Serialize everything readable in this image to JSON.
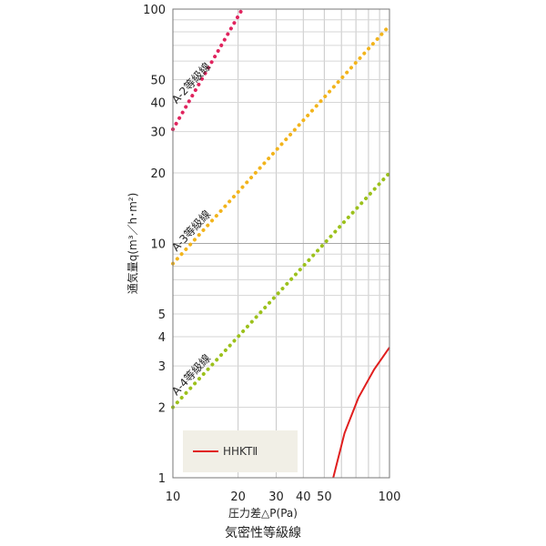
{
  "chart_data": {
    "type": "line",
    "title": "気密性等級線",
    "xlabel": "圧力差△P(Pa)",
    "ylabel": "通気量q(m³／h･m²)",
    "x_scale": "log",
    "y_scale": "log",
    "xlim": [
      10,
      100
    ],
    "ylim": [
      1,
      100
    ],
    "grid": true,
    "x_ticks": [
      10,
      20,
      30,
      40,
      50,
      100
    ],
    "x_tick_labels": [
      "10",
      "20",
      "30",
      "40",
      "50",
      "100"
    ],
    "y_ticks": [
      1,
      2,
      3,
      4,
      5,
      10,
      20,
      30,
      40,
      50,
      100
    ],
    "y_tick_labels": [
      "1",
      "2",
      "3",
      "4",
      "5",
      "10",
      "20",
      "30",
      "40",
      "50",
      "100"
    ],
    "legend": {
      "placement": "bottom-left",
      "entries": [
        "HHKTⅡ"
      ]
    },
    "series": [
      {
        "name": "A-2等級線",
        "style": "dotted",
        "color": "#e0245e",
        "x": [
          10,
          20.9
        ],
        "y": [
          30.7,
          100
        ]
      },
      {
        "name": "A-3等級線",
        "style": "dotted",
        "color": "#f2b41c",
        "x": [
          10,
          100
        ],
        "y": [
          8.2,
          85
        ]
      },
      {
        "name": "A-4等級線",
        "style": "dotted",
        "color": "#9cc11c",
        "x": [
          10,
          100
        ],
        "y": [
          2.0,
          20
        ]
      },
      {
        "name": "HHKTⅡ",
        "style": "solid",
        "color": "#e01e1e",
        "x": [
          55,
          62,
          72,
          85,
          100
        ],
        "y": [
          1.0,
          1.55,
          2.2,
          2.9,
          3.6
        ]
      }
    ]
  }
}
